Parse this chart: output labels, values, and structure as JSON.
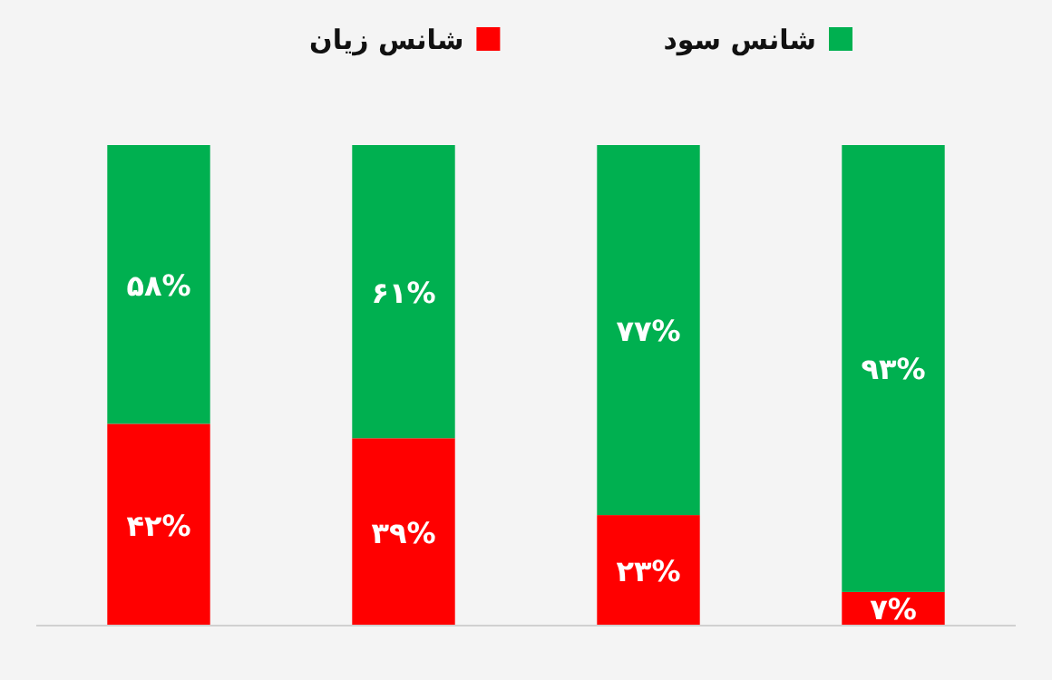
{
  "chart_data": {
    "type": "bar",
    "stacked": true,
    "categories": [
      null,
      null,
      null,
      null
    ],
    "ylim": [
      0,
      100
    ],
    "legend": "top",
    "series": [
      {
        "name": "شانس زیان",
        "color": "#ff0000",
        "values": [
          42,
          39,
          23,
          7
        ],
        "value_labels": [
          "۴۲%",
          "۳۹%",
          "۲۳%",
          "۷%"
        ]
      },
      {
        "name": "شانس سود",
        "color": "#00b050",
        "values": [
          58,
          61,
          77,
          93
        ],
        "value_labels": [
          "۵۸%",
          "۶۱%",
          "۷۷%",
          "۹۳%"
        ]
      }
    ]
  }
}
